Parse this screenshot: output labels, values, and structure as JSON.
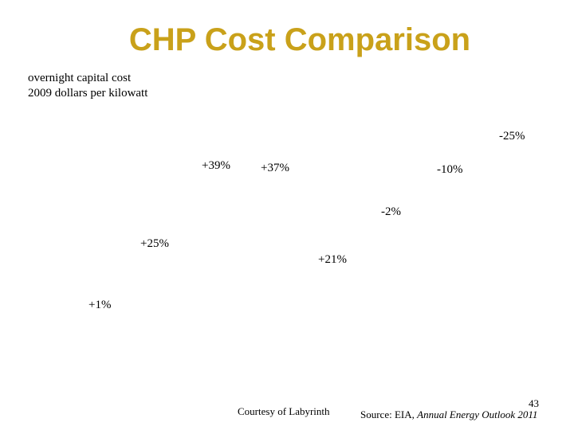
{
  "slide": {
    "title": "CHP Cost Comparison",
    "subtitle_line1": "overnight capital cost",
    "subtitle_line2": "2009 dollars per kilowatt",
    "title_color": "#c9a11a"
  },
  "change_labels": [
    "-25%",
    "+39%",
    "+37%",
    "-10%",
    "-2%",
    "+25%",
    "+21%",
    "+1%"
  ],
  "footer": {
    "courtesy": "Courtesy of Labyrinth",
    "source_prefix": "Source: EIA, ",
    "source_title": "Annual Energy Outlook 2011",
    "page_number": "43"
  }
}
